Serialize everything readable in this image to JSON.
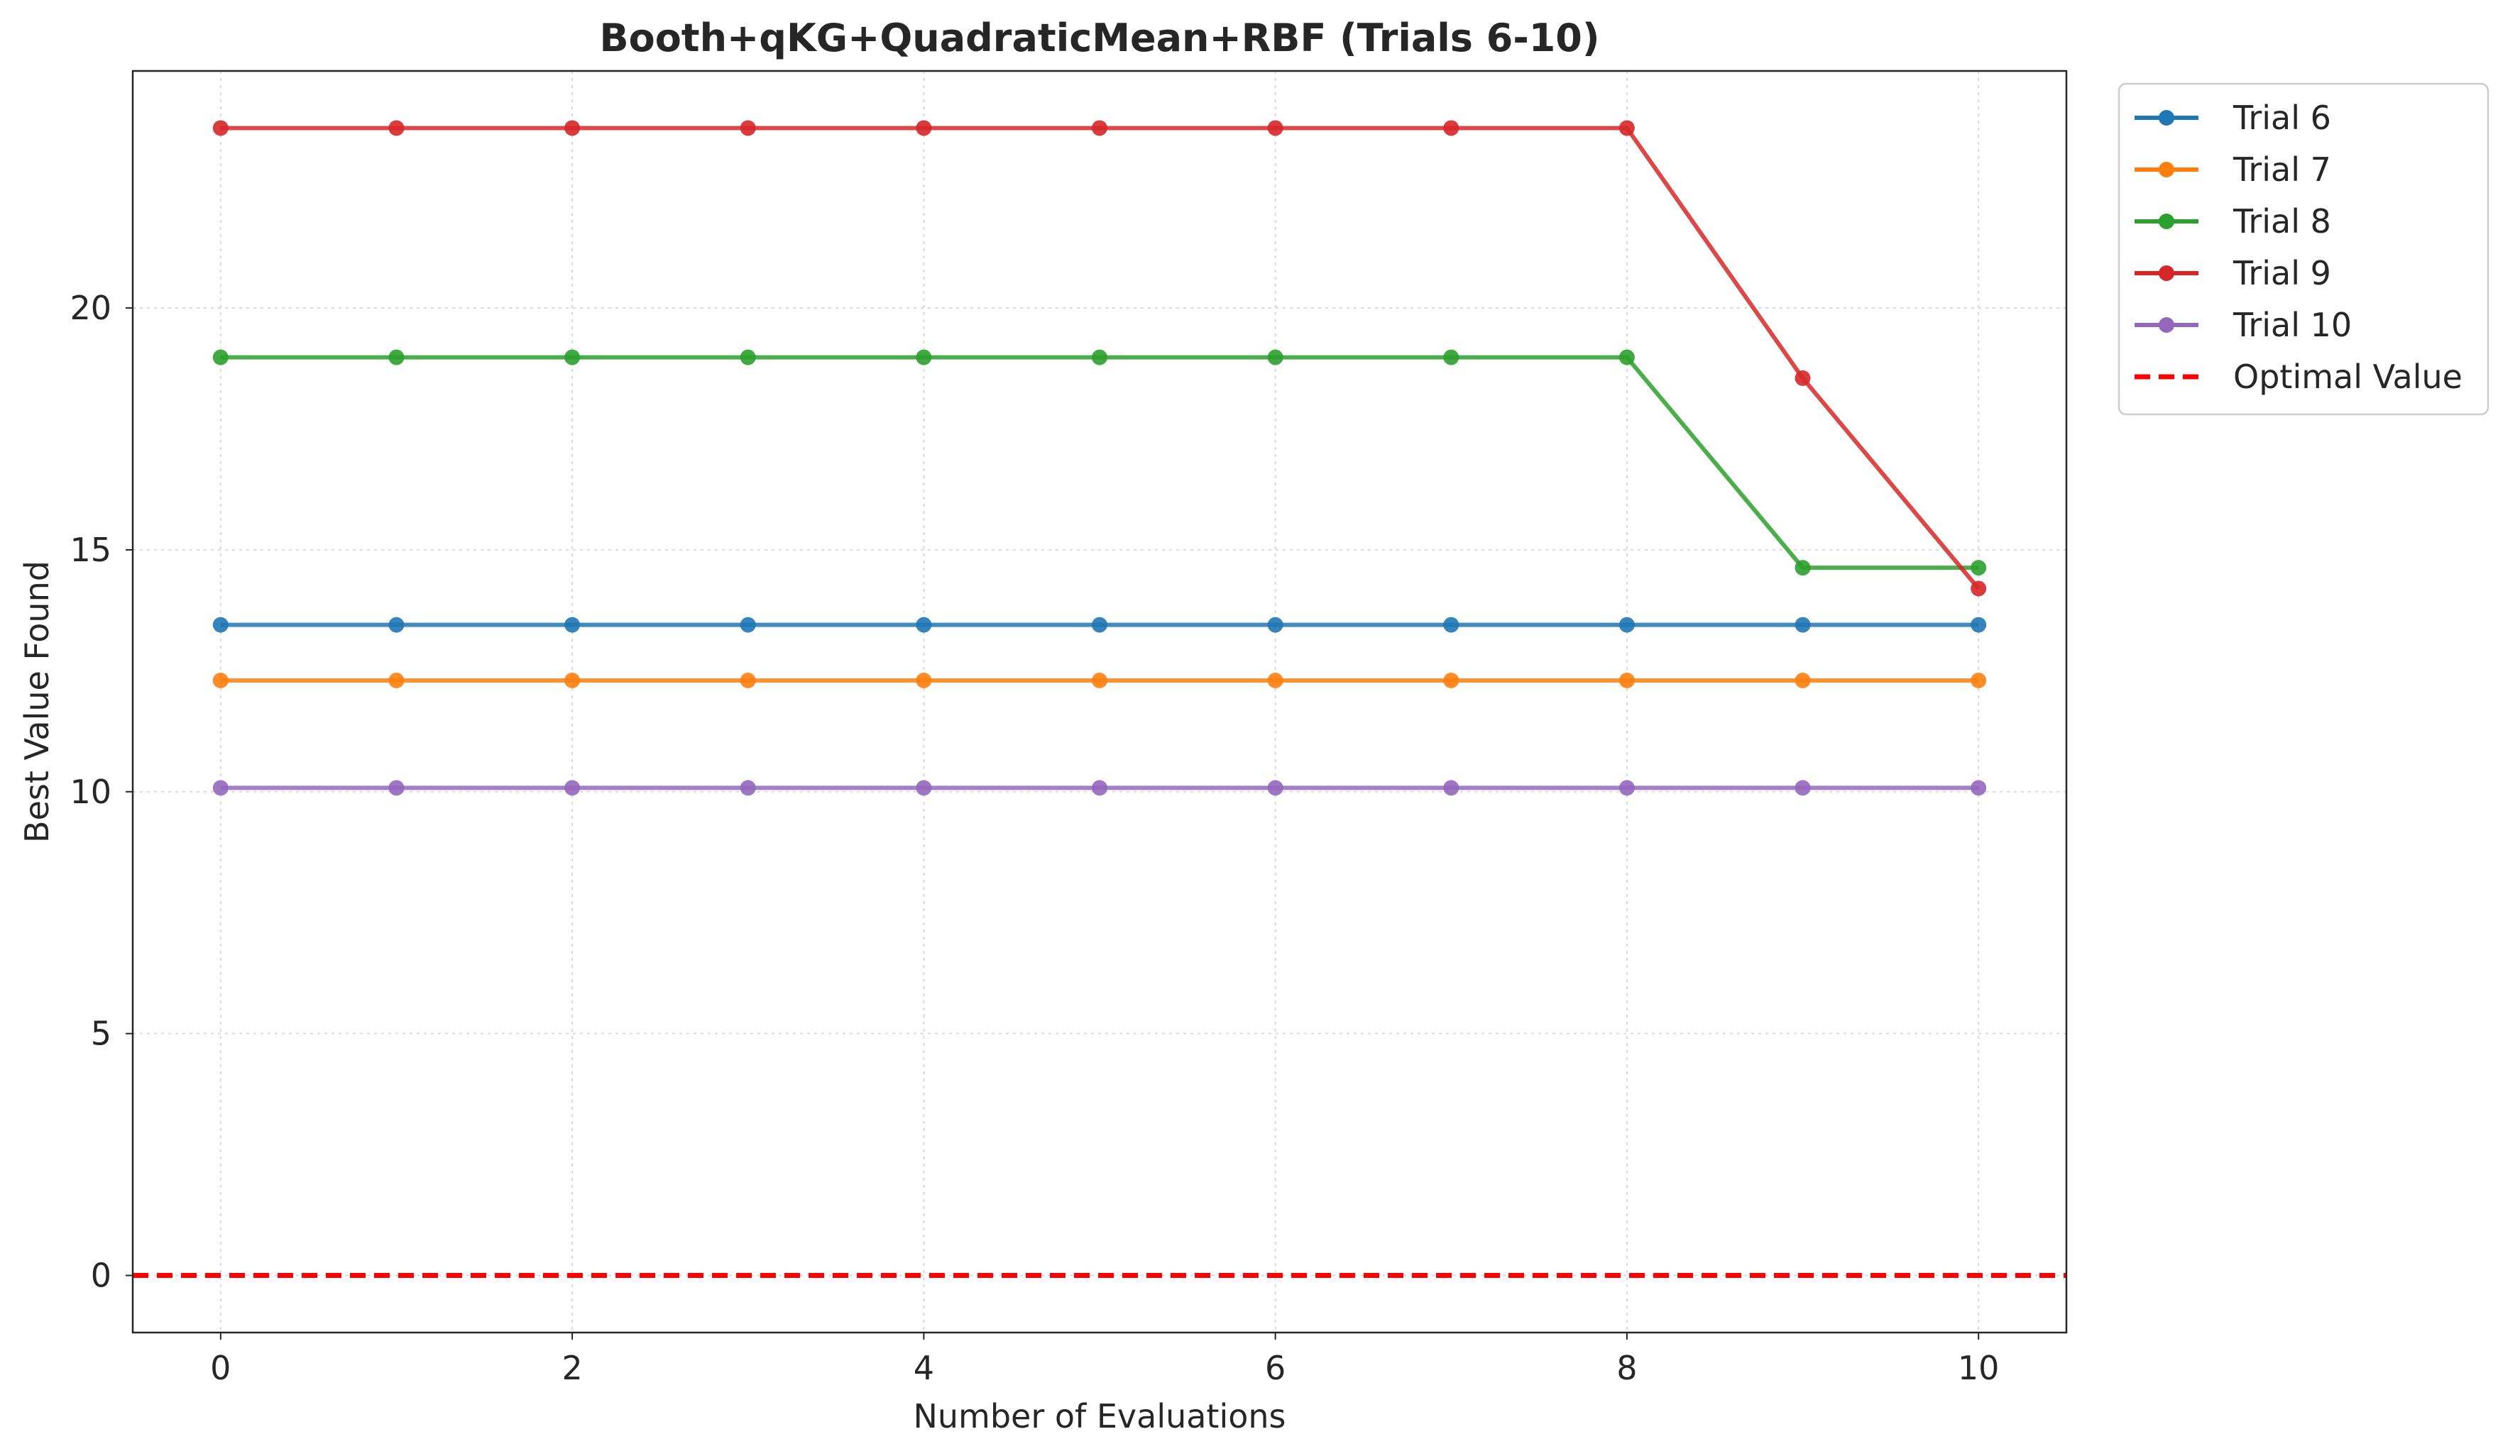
{
  "chart_data": {
    "type": "line",
    "title": "Booth+qKG+QuadraticMean+RBF (Trials 6-10)",
    "xlabel": "Number of Evaluations",
    "ylabel": "Best Value Found",
    "xlim": [
      -0.5,
      10.5
    ],
    "ylim": [
      -1.18,
      24.9
    ],
    "xticks": [
      0,
      2,
      4,
      6,
      8,
      10
    ],
    "yticks": [
      0,
      5,
      10,
      15,
      20
    ],
    "grid": true,
    "legend_position": "outside-top-right",
    "x": [
      0,
      1,
      2,
      3,
      4,
      5,
      6,
      7,
      8,
      9,
      10
    ],
    "series": [
      {
        "name": "Trial 6",
        "color": "#1f77b4",
        "values": [
          13.45,
          13.45,
          13.45,
          13.45,
          13.45,
          13.45,
          13.45,
          13.45,
          13.45,
          13.45,
          13.45
        ]
      },
      {
        "name": "Trial 7",
        "color": "#ff7f0e",
        "values": [
          12.3,
          12.3,
          12.3,
          12.3,
          12.3,
          12.3,
          12.3,
          12.3,
          12.3,
          12.3,
          12.3
        ]
      },
      {
        "name": "Trial 8",
        "color": "#2ca02c",
        "values": [
          18.98,
          18.98,
          18.98,
          18.98,
          18.98,
          18.98,
          18.98,
          18.98,
          18.98,
          14.63,
          14.63
        ]
      },
      {
        "name": "Trial 9",
        "color": "#d62728",
        "values": [
          23.72,
          23.72,
          23.72,
          23.72,
          23.72,
          23.72,
          23.72,
          23.72,
          23.72,
          18.55,
          14.2
        ]
      },
      {
        "name": "Trial 10",
        "color": "#9467bd",
        "values": [
          10.08,
          10.08,
          10.08,
          10.08,
          10.08,
          10.08,
          10.08,
          10.08,
          10.08,
          10.08,
          10.08
        ]
      }
    ],
    "reference_line": {
      "name": "Optimal Value",
      "y": 0,
      "color": "#ff0000",
      "style": "dashed"
    }
  }
}
